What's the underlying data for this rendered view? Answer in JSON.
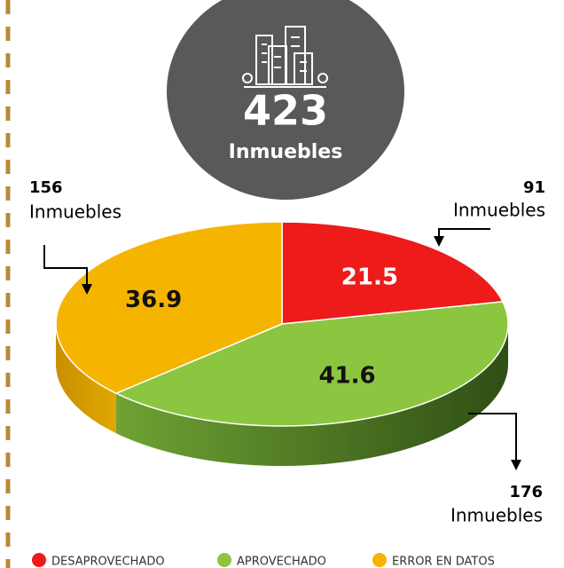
{
  "chart_data": {
    "type": "pie",
    "total": 423,
    "total_label": "Inmuebles",
    "categories": [
      "DESAPROVECHADO",
      "APROVECHADO",
      "ERROR EN DATOS"
    ],
    "values": [
      21.5,
      41.6,
      36.9
    ],
    "counts": [
      91,
      176,
      156
    ],
    "count_label": "Inmuebles",
    "colors": [
      "#ee1b1b",
      "#8cc640",
      "#f5b400"
    ],
    "side_colors": [
      "#a01010",
      "url(#gside)",
      "url(#yside)"
    ]
  }
}
